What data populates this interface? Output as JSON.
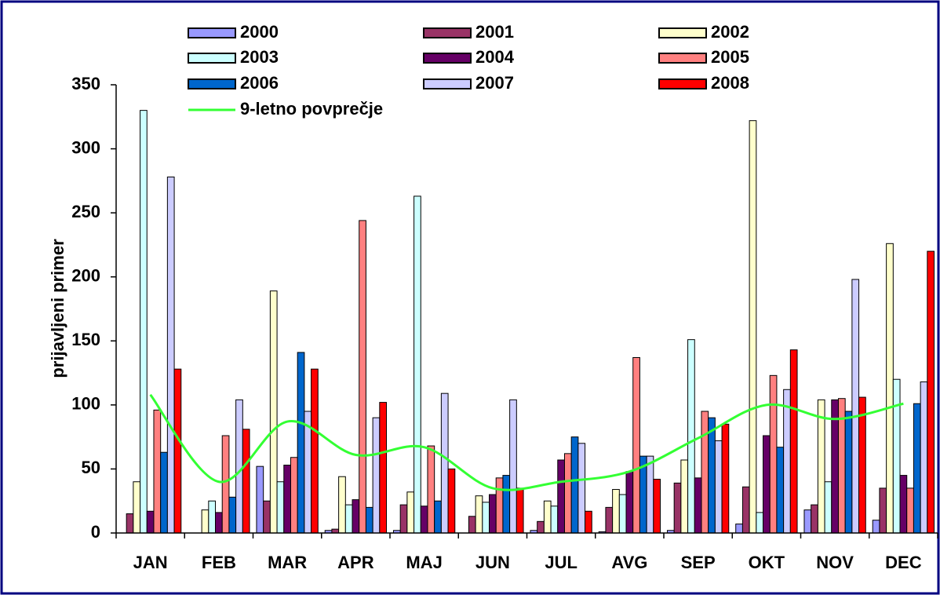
{
  "chart_data": {
    "type": "bar",
    "y_label": "prijavljeni primer",
    "categories": [
      "JAN",
      "FEB",
      "MAR",
      "APR",
      "MAJ",
      "JUN",
      "JUL",
      "AVG",
      "SEP",
      "OKT",
      "NOV",
      "DEC"
    ],
    "series": [
      {
        "name": "2000",
        "color": "#9999ff",
        "values": [
          0,
          0,
          52,
          2,
          2,
          0,
          2,
          1,
          2,
          7,
          18,
          10
        ]
      },
      {
        "name": "2001",
        "color": "#993366",
        "values": [
          15,
          0,
          25,
          3,
          22,
          13,
          9,
          20,
          39,
          36,
          22,
          35
        ]
      },
      {
        "name": "2002",
        "color": "#ffffcc",
        "values": [
          40,
          18,
          189,
          44,
          32,
          29,
          25,
          34,
          57,
          322,
          104,
          226
        ]
      },
      {
        "name": "2003",
        "color": "#ccffff",
        "values": [
          330,
          25,
          40,
          22,
          263,
          24,
          21,
          30,
          151,
          16,
          40,
          120
        ]
      },
      {
        "name": "2004",
        "color": "#660066",
        "values": [
          17,
          16,
          53,
          26,
          21,
          30,
          57,
          48,
          43,
          76,
          104,
          45
        ]
      },
      {
        "name": "2005",
        "color": "#ff8080",
        "values": [
          96,
          76,
          59,
          244,
          68,
          43,
          62,
          137,
          95,
          123,
          105,
          35
        ]
      },
      {
        "name": "2006",
        "color": "#0066cc",
        "values": [
          63,
          28,
          141,
          20,
          25,
          45,
          75,
          60,
          90,
          67,
          95,
          101
        ]
      },
      {
        "name": "2007",
        "color": "#ccccff",
        "values": [
          278,
          104,
          95,
          90,
          109,
          104,
          70,
          60,
          72,
          112,
          198,
          118
        ]
      },
      {
        "name": "2008",
        "color": "#ff0000",
        "values": [
          128,
          81,
          128,
          102,
          50,
          35,
          17,
          42,
          85,
          143,
          106,
          220
        ]
      },
      {
        "name": "9-letno povprečje",
        "type": "line",
        "color": "#33ff33",
        "values": [
          108,
          40,
          87,
          61,
          67,
          35,
          40,
          48,
          74,
          100,
          89,
          101
        ]
      }
    ],
    "ylim": [
      0,
      350
    ],
    "yticks": [
      0,
      50,
      100,
      150,
      200,
      250,
      300,
      350
    ]
  }
}
